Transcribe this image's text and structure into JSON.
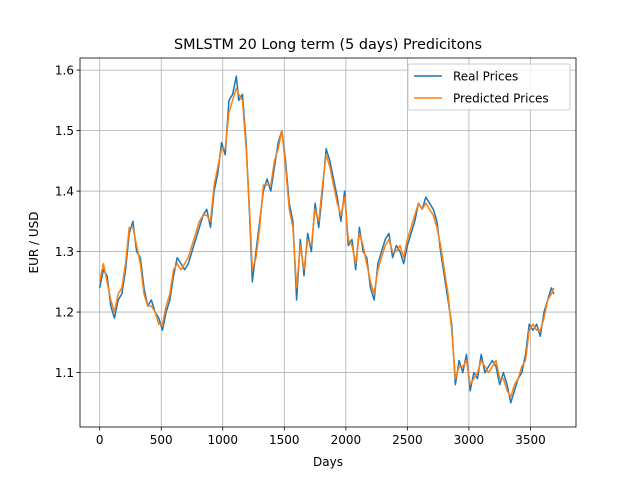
{
  "chart_data": {
    "type": "line",
    "title": "SMLSTM 20 Long term (5 days) Predicitons",
    "xlabel": "Days",
    "ylabel": "EUR / USD",
    "xlim": [
      -160,
      3870
    ],
    "ylim": [
      1.01,
      1.62
    ],
    "xticks": [
      0,
      500,
      1000,
      1500,
      2000,
      2500,
      3000,
      3500
    ],
    "yticks": [
      1.1,
      1.2,
      1.3,
      1.4,
      1.5,
      1.6
    ],
    "grid": true,
    "legend_position": "top-right",
    "colors": {
      "real": "#1f77b4",
      "predicted": "#ff7f0e"
    },
    "series": [
      {
        "name": "Real Prices",
        "color": "#1f77b4",
        "x": [
          0,
          30,
          60,
          90,
          120,
          150,
          180,
          210,
          240,
          270,
          300,
          330,
          360,
          390,
          420,
          450,
          480,
          510,
          540,
          570,
          600,
          630,
          660,
          690,
          720,
          750,
          780,
          810,
          840,
          870,
          900,
          930,
          960,
          990,
          1020,
          1050,
          1080,
          1110,
          1130,
          1160,
          1190,
          1220,
          1240,
          1270,
          1300,
          1330,
          1360,
          1390,
          1420,
          1450,
          1480,
          1510,
          1540,
          1570,
          1600,
          1630,
          1660,
          1690,
          1720,
          1750,
          1780,
          1810,
          1840,
          1870,
          1900,
          1930,
          1960,
          1990,
          2020,
          2050,
          2080,
          2110,
          2140,
          2170,
          2200,
          2230,
          2260,
          2290,
          2320,
          2350,
          2380,
          2410,
          2440,
          2470,
          2500,
          2530,
          2560,
          2590,
          2620,
          2650,
          2680,
          2710,
          2740,
          2770,
          2800,
          2830,
          2860,
          2890,
          2920,
          2950,
          2980,
          3010,
          3040,
          3070,
          3100,
          3130,
          3160,
          3190,
          3220,
          3250,
          3280,
          3310,
          3340,
          3370,
          3400,
          3430,
          3460,
          3490,
          3520,
          3550,
          3580,
          3610,
          3640,
          3670,
          3690
        ],
        "y": [
          1.24,
          1.27,
          1.26,
          1.21,
          1.19,
          1.22,
          1.23,
          1.27,
          1.33,
          1.35,
          1.3,
          1.29,
          1.24,
          1.21,
          1.22,
          1.2,
          1.19,
          1.17,
          1.2,
          1.22,
          1.26,
          1.29,
          1.28,
          1.27,
          1.28,
          1.3,
          1.32,
          1.34,
          1.36,
          1.37,
          1.34,
          1.4,
          1.43,
          1.48,
          1.46,
          1.55,
          1.56,
          1.59,
          1.55,
          1.56,
          1.48,
          1.35,
          1.25,
          1.3,
          1.35,
          1.4,
          1.42,
          1.4,
          1.44,
          1.48,
          1.5,
          1.45,
          1.38,
          1.35,
          1.22,
          1.32,
          1.26,
          1.33,
          1.3,
          1.38,
          1.34,
          1.4,
          1.47,
          1.45,
          1.42,
          1.39,
          1.35,
          1.4,
          1.31,
          1.32,
          1.27,
          1.34,
          1.3,
          1.29,
          1.24,
          1.22,
          1.28,
          1.3,
          1.32,
          1.33,
          1.29,
          1.31,
          1.3,
          1.28,
          1.31,
          1.33,
          1.35,
          1.38,
          1.37,
          1.39,
          1.38,
          1.37,
          1.35,
          1.3,
          1.26,
          1.22,
          1.18,
          1.08,
          1.12,
          1.1,
          1.13,
          1.07,
          1.1,
          1.09,
          1.13,
          1.1,
          1.11,
          1.12,
          1.11,
          1.08,
          1.1,
          1.08,
          1.05,
          1.07,
          1.09,
          1.1,
          1.13,
          1.18,
          1.17,
          1.18,
          1.16,
          1.2,
          1.22,
          1.24,
          1.23
        ]
      },
      {
        "name": "Predicted Prices",
        "color": "#ff7f0e",
        "x": [
          0,
          30,
          60,
          90,
          120,
          150,
          180,
          210,
          240,
          270,
          300,
          330,
          360,
          390,
          420,
          450,
          480,
          510,
          540,
          570,
          600,
          630,
          660,
          690,
          720,
          750,
          780,
          810,
          840,
          870,
          900,
          930,
          960,
          990,
          1020,
          1050,
          1080,
          1110,
          1130,
          1160,
          1190,
          1220,
          1240,
          1270,
          1300,
          1330,
          1360,
          1390,
          1420,
          1450,
          1480,
          1510,
          1540,
          1570,
          1600,
          1630,
          1660,
          1690,
          1720,
          1750,
          1780,
          1810,
          1840,
          1870,
          1900,
          1930,
          1960,
          1990,
          2020,
          2050,
          2080,
          2110,
          2140,
          2170,
          2200,
          2230,
          2260,
          2290,
          2320,
          2350,
          2380,
          2410,
          2440,
          2470,
          2500,
          2530,
          2560,
          2590,
          2620,
          2650,
          2680,
          2710,
          2740,
          2770,
          2800,
          2830,
          2860,
          2890,
          2920,
          2950,
          2980,
          3010,
          3040,
          3070,
          3100,
          3130,
          3160,
          3190,
          3220,
          3250,
          3280,
          3310,
          3340,
          3370,
          3400,
          3430,
          3460,
          3490,
          3520,
          3550,
          3580,
          3610,
          3640,
          3670,
          3690
        ],
        "y": [
          1.25,
          1.28,
          1.25,
          1.22,
          1.2,
          1.23,
          1.24,
          1.28,
          1.34,
          1.34,
          1.31,
          1.28,
          1.23,
          1.21,
          1.21,
          1.2,
          1.18,
          1.18,
          1.21,
          1.23,
          1.27,
          1.28,
          1.27,
          1.28,
          1.29,
          1.31,
          1.33,
          1.35,
          1.36,
          1.36,
          1.35,
          1.41,
          1.44,
          1.47,
          1.47,
          1.53,
          1.55,
          1.57,
          1.56,
          1.55,
          1.47,
          1.36,
          1.27,
          1.29,
          1.34,
          1.41,
          1.41,
          1.41,
          1.45,
          1.47,
          1.5,
          1.44,
          1.37,
          1.34,
          1.24,
          1.31,
          1.27,
          1.32,
          1.31,
          1.37,
          1.35,
          1.41,
          1.46,
          1.44,
          1.41,
          1.38,
          1.36,
          1.39,
          1.32,
          1.31,
          1.28,
          1.33,
          1.31,
          1.28,
          1.25,
          1.23,
          1.27,
          1.29,
          1.31,
          1.32,
          1.3,
          1.3,
          1.31,
          1.29,
          1.32,
          1.34,
          1.36,
          1.38,
          1.37,
          1.38,
          1.37,
          1.36,
          1.34,
          1.31,
          1.27,
          1.23,
          1.17,
          1.09,
          1.11,
          1.11,
          1.12,
          1.08,
          1.09,
          1.1,
          1.12,
          1.11,
          1.1,
          1.11,
          1.12,
          1.09,
          1.09,
          1.07,
          1.06,
          1.08,
          1.09,
          1.11,
          1.12,
          1.17,
          1.18,
          1.17,
          1.17,
          1.19,
          1.22,
          1.23,
          1.24
        ]
      }
    ]
  }
}
